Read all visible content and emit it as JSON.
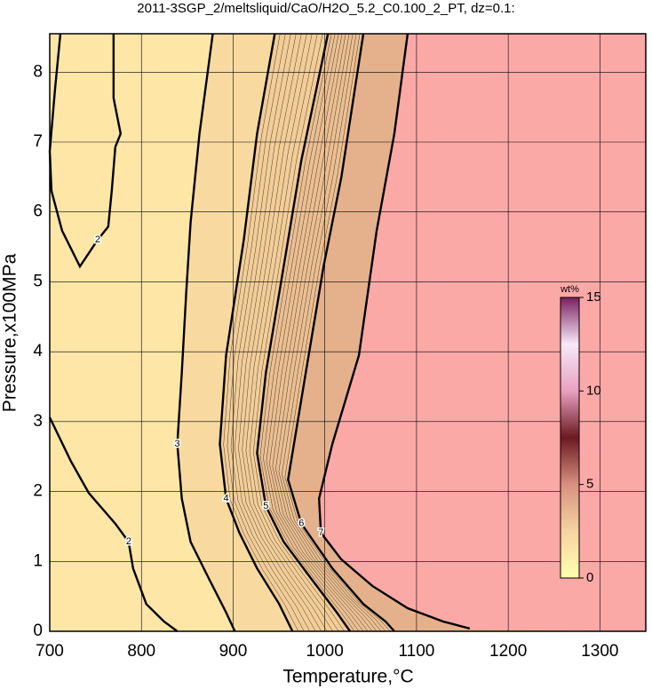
{
  "chart_data": {
    "type": "contour",
    "title": "2011-3SGP_2/meltsliquid/CaO/H2O_5.2_C0.100_2_PT, dz=0.1:",
    "xlabel": "Temperature,°C",
    "ylabel": "Pressure,x100MPa",
    "xlim": [
      700,
      1350
    ],
    "ylim": [
      0,
      8.55
    ],
    "xticks": [
      700,
      800,
      900,
      1000,
      1100,
      1200,
      1300
    ],
    "yticks": [
      0,
      1,
      2,
      3,
      4,
      5,
      6,
      7,
      8
    ],
    "grid": true,
    "background": "#fde6a6",
    "contours": [
      {
        "level": 2,
        "fill": null,
        "x": [
          711.6,
          705.8,
          700,
          701.9,
          713.5,
          732.9,
          752.2,
          763.8,
          767.6,
          771.5,
          777.3,
          769.6,
          769.6
        ],
        "y": [
          8.55,
          7.76,
          6.87,
          6.3,
          5.73,
          5.22,
          5.6,
          5.79,
          6.3,
          6.93,
          7.12,
          7.63,
          8.55
        ]
      },
      {
        "level": 2,
        "fill": null,
        "x": [
          700,
          723.2,
          742.5,
          771.5,
          786,
          790.9,
          805.3,
          824.6,
          839.1
        ],
        "y": [
          3.06,
          2.43,
          1.98,
          1.54,
          1.28,
          0.9,
          0.39,
          0.14,
          0
        ]
      },
      {
        "level": 3,
        "fill": "#f8daa0",
        "x": [
          877.8,
          863.3,
          853.6,
          848.8,
          844,
          839.1,
          844,
          853.6,
          872.9,
          892.3,
          901.9
        ],
        "y": [
          8.55,
          7.12,
          5.85,
          4.84,
          3.7,
          2.68,
          1.9,
          1.28,
          0.77,
          0.27,
          0
        ]
      },
      {
        "level": 4,
        "fill": "#f2cd98",
        "x": [
          945.4,
          926.1,
          911.6,
          892.3,
          885.5,
          892.3,
          906.8,
          926.1,
          950.2,
          964.7
        ],
        "y": [
          8.55,
          7.12,
          5.6,
          3.95,
          2.68,
          1.9,
          1.41,
          0.9,
          0.39,
          0
        ]
      },
      {
        "level": 5,
        "fill": "#ebbf92",
        "x": [
          1003.4,
          974.4,
          955.1,
          935.7,
          926.1,
          935.7,
          955.1,
          984.1,
          1013,
          1027.5
        ],
        "y": [
          8.55,
          6.74,
          5.22,
          3.7,
          2.55,
          1.79,
          1.28,
          0.77,
          0.27,
          0
        ]
      },
      {
        "level": 6,
        "fill": "#e4b18c",
        "x": [
          1042,
          1017.9,
          998.6,
          979.2,
          959.9,
          974.4,
          1008.2,
          1042,
          1066.2,
          1075.8
        ],
        "y": [
          8.55,
          6.49,
          5.22,
          3.7,
          2.17,
          1.54,
          0.9,
          0.39,
          0.14,
          0
        ]
      },
      {
        "level": 7,
        "fill": "#fba9a7",
        "x": [
          1090.3,
          1075.8,
          1056.5,
          1037.2,
          1008.2,
          993.7,
          995.7,
          1017.9,
          1051.7,
          1090.3,
          1129,
          1158
        ],
        "y": [
          8.55,
          7.12,
          5.73,
          3.95,
          2.68,
          1.9,
          1.41,
          1.03,
          0.65,
          0.33,
          0.14,
          0.04
        ]
      }
    ],
    "colorbar": {
      "label": "wt%",
      "lim": [
        0,
        15
      ],
      "ticks": [
        0,
        5,
        10,
        15
      ],
      "colors": [
        "#ffffb0",
        "#f6d4a0",
        "#d89080",
        "#6a1a20",
        "#e8a0c0",
        "#f8e8f8",
        "#7a2060"
      ]
    }
  }
}
